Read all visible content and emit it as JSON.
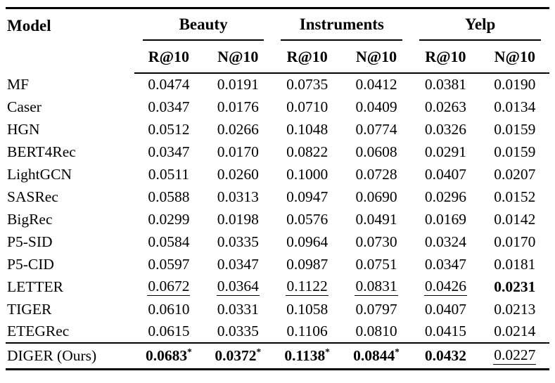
{
  "page": {
    "background_color": "#ffffff",
    "text_color": "#000000",
    "rule_color": "#000000"
  },
  "table": {
    "model_header": "Model",
    "groups": [
      "Beauty",
      "Instruments",
      "Yelp"
    ],
    "metric_headers": [
      "R@10",
      "N@10",
      "R@10",
      "N@10",
      "R@10",
      "N@10"
    ],
    "significance_marker": "*",
    "rows": [
      {
        "model": "MF",
        "values": [
          {
            "v": "0.0474"
          },
          {
            "v": "0.0191"
          },
          {
            "v": "0.0735"
          },
          {
            "v": "0.0412"
          },
          {
            "v": "0.0381"
          },
          {
            "v": "0.0190"
          }
        ]
      },
      {
        "model": "Caser",
        "values": [
          {
            "v": "0.0347"
          },
          {
            "v": "0.0176"
          },
          {
            "v": "0.0710"
          },
          {
            "v": "0.0409"
          },
          {
            "v": "0.0263"
          },
          {
            "v": "0.0134"
          }
        ]
      },
      {
        "model": "HGN",
        "values": [
          {
            "v": "0.0512"
          },
          {
            "v": "0.0266"
          },
          {
            "v": "0.1048"
          },
          {
            "v": "0.0774"
          },
          {
            "v": "0.0326"
          },
          {
            "v": "0.0159"
          }
        ]
      },
      {
        "model": "BERT4Rec",
        "values": [
          {
            "v": "0.0347"
          },
          {
            "v": "0.0170"
          },
          {
            "v": "0.0822"
          },
          {
            "v": "0.0608"
          },
          {
            "v": "0.0291"
          },
          {
            "v": "0.0159"
          }
        ]
      },
      {
        "model": "LightGCN",
        "values": [
          {
            "v": "0.0511"
          },
          {
            "v": "0.0260"
          },
          {
            "v": "0.1000"
          },
          {
            "v": "0.0728"
          },
          {
            "v": "0.0407"
          },
          {
            "v": "0.0207"
          }
        ]
      },
      {
        "model": "SASRec",
        "values": [
          {
            "v": "0.0588"
          },
          {
            "v": "0.0313"
          },
          {
            "v": "0.0947"
          },
          {
            "v": "0.0690"
          },
          {
            "v": "0.0296"
          },
          {
            "v": "0.0152"
          }
        ]
      },
      {
        "model": "BigRec",
        "values": [
          {
            "v": "0.0299"
          },
          {
            "v": "0.0198"
          },
          {
            "v": "0.0576"
          },
          {
            "v": "0.0491"
          },
          {
            "v": "0.0169"
          },
          {
            "v": "0.0142"
          }
        ]
      },
      {
        "model": "P5-SID",
        "values": [
          {
            "v": "0.0584"
          },
          {
            "v": "0.0335"
          },
          {
            "v": "0.0964"
          },
          {
            "v": "0.0730"
          },
          {
            "v": "0.0324"
          },
          {
            "v": "0.0170"
          }
        ]
      },
      {
        "model": "P5-CID",
        "values": [
          {
            "v": "0.0597"
          },
          {
            "v": "0.0347"
          },
          {
            "v": "0.0987"
          },
          {
            "v": "0.0751"
          },
          {
            "v": "0.0347"
          },
          {
            "v": "0.0181"
          }
        ]
      },
      {
        "model": "LETTER",
        "values": [
          {
            "v": "0.0672",
            "underline": true
          },
          {
            "v": "0.0364",
            "underline": true
          },
          {
            "v": "0.1122",
            "underline": true
          },
          {
            "v": "0.0831",
            "underline": true
          },
          {
            "v": "0.0426",
            "underline": true
          },
          {
            "v": "0.0231",
            "bold": true
          }
        ]
      },
      {
        "model": "TIGER",
        "values": [
          {
            "v": "0.0610"
          },
          {
            "v": "0.0331"
          },
          {
            "v": "0.1058"
          },
          {
            "v": "0.0797"
          },
          {
            "v": "0.0407"
          },
          {
            "v": "0.0213"
          }
        ]
      },
      {
        "model": "ETEGRec",
        "values": [
          {
            "v": "0.0615"
          },
          {
            "v": "0.0335"
          },
          {
            "v": "0.1106"
          },
          {
            "v": "0.0810"
          },
          {
            "v": "0.0415"
          },
          {
            "v": "0.0214"
          }
        ]
      },
      {
        "model": "DIGER (Ours)",
        "ours": true,
        "rule_above": true,
        "values": [
          {
            "v": "0.0683",
            "bold": true,
            "sup": "*"
          },
          {
            "v": "0.0372",
            "bold": true,
            "sup": "*"
          },
          {
            "v": "0.1138",
            "bold": true,
            "sup": "*"
          },
          {
            "v": "0.0844",
            "bold": true,
            "sup": "*"
          },
          {
            "v": "0.0432",
            "bold": true
          },
          {
            "v": "0.0227",
            "underline": true
          }
        ]
      }
    ]
  }
}
